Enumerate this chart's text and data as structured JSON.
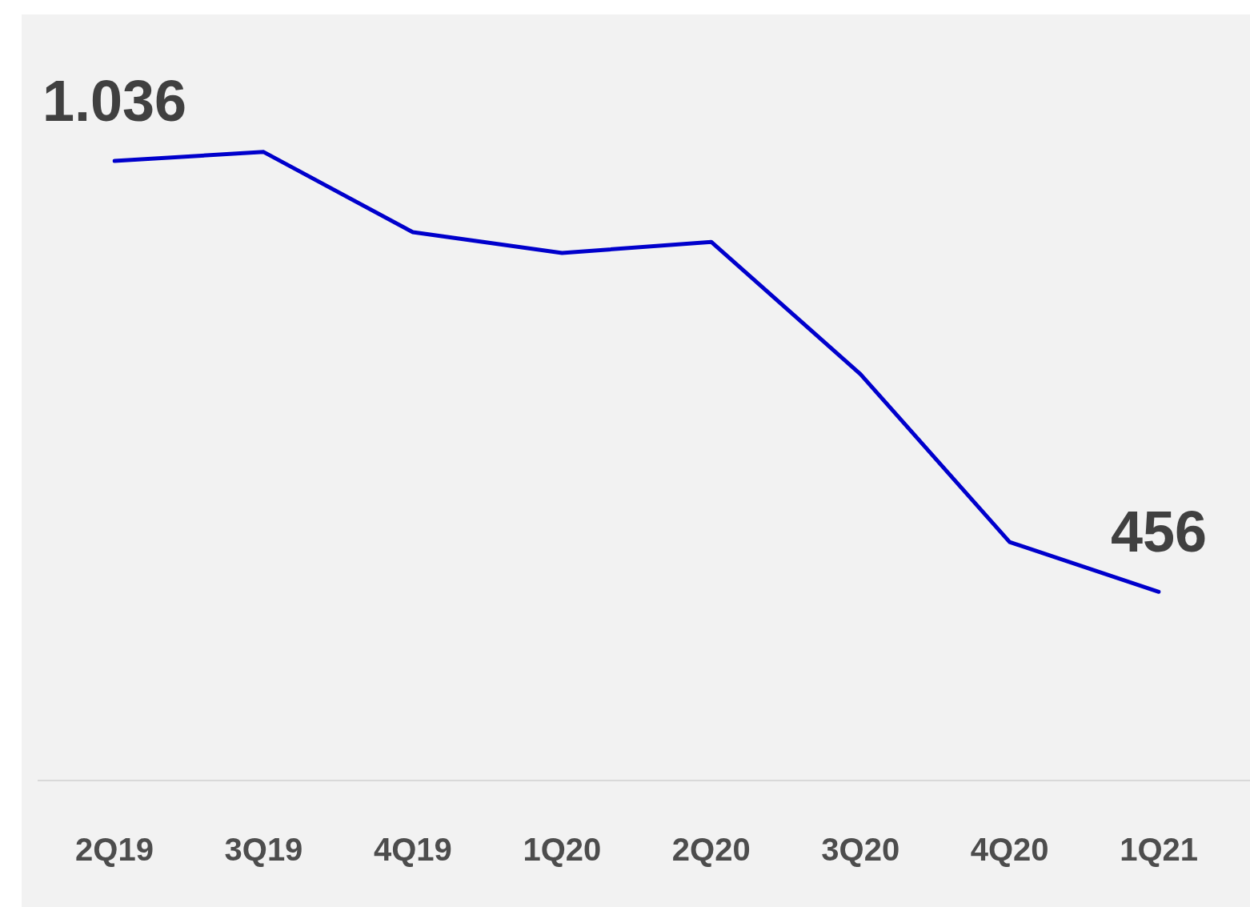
{
  "chart_data": {
    "type": "line",
    "categories": [
      "2Q19",
      "3Q19",
      "4Q19",
      "1Q20",
      "2Q20",
      "3Q20",
      "4Q20",
      "1Q21"
    ],
    "series": [
      {
        "color": "#0000cc",
        "values": [
          1036,
          1048,
          940,
          912,
          927,
          749,
          523,
          456
        ],
        "value_labels": [
          "1.036",
          null,
          null,
          null,
          null,
          null,
          null,
          "456"
        ]
      }
    ],
    "ylim": [
      202,
      1231
    ],
    "grid": false,
    "legend": false,
    "marker": "none",
    "line_style": "solid",
    "tick_labels": "x"
  }
}
